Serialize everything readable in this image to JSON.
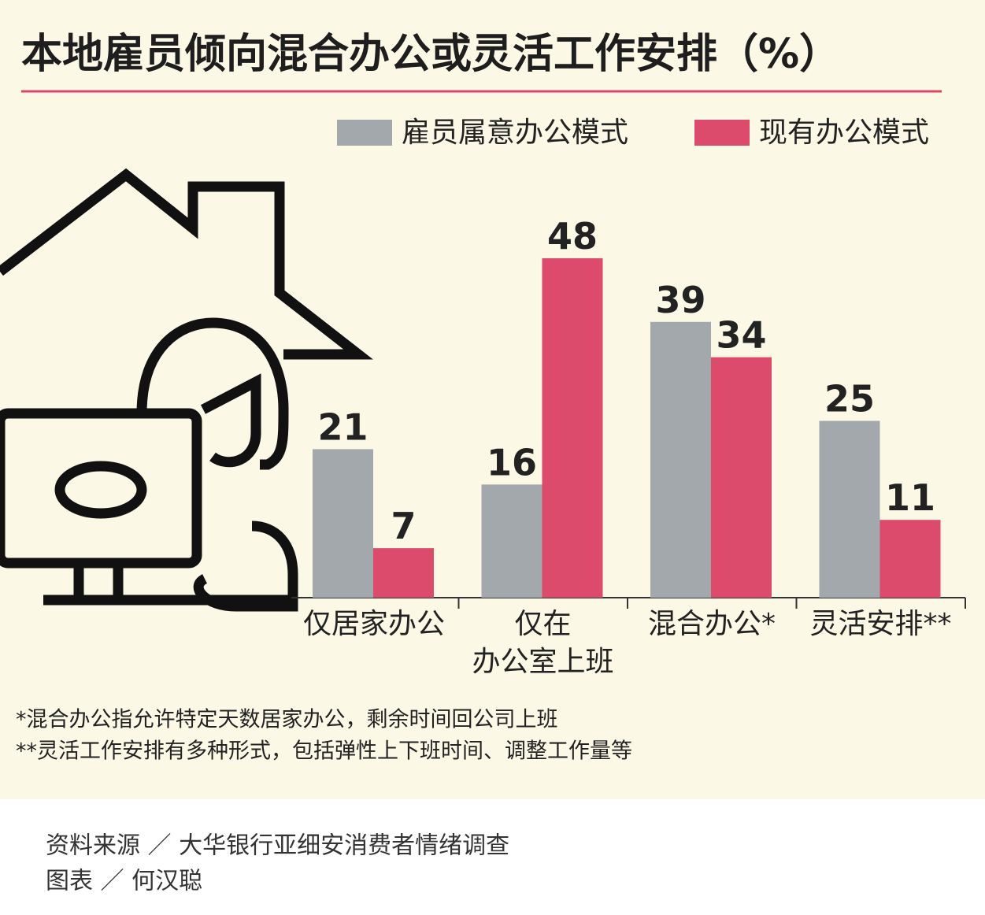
{
  "chart_data": {
    "type": "bar",
    "title": "本地雇员倾向混合办公或灵活工作安排（%）",
    "categories": [
      "仅居家办公",
      "仅在\n办公室上班",
      "混合办公*",
      "灵活安排**"
    ],
    "series": [
      {
        "name": "雇员属意办公模式",
        "color": "#a3a8ac",
        "values": [
          21,
          16,
          39,
          25
        ]
      },
      {
        "name": "现有办公模式",
        "color": "#dc4a6c",
        "values": [
          7,
          48,
          34,
          11
        ]
      }
    ],
    "footnotes": [
      "*混合办公指允许特定天数居家办公，剩余时间回公司上班",
      "**灵活工作安排有多种形式，包括弹性上下班时间、调整工作量等"
    ],
    "source": "资料来源 ／ 大华银行亚细安消费者情绪调查",
    "credit": "图表 ／ 何汉聪"
  }
}
